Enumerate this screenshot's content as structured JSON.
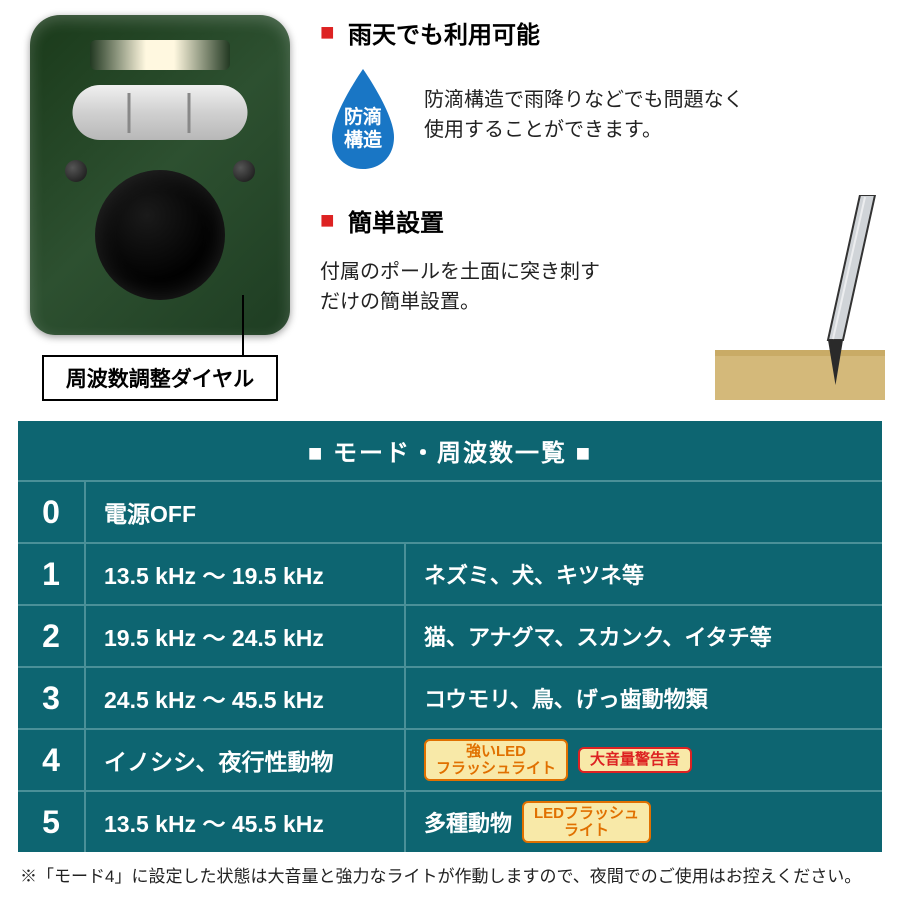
{
  "device": {
    "dial_label": "周波数調整ダイヤル"
  },
  "features": {
    "rain": {
      "heading": "雨天でも利用可能",
      "badge_line1": "防滴",
      "badge_line2": "構造",
      "badge_color": "#1976c5",
      "desc_line1": "防滴構造で雨降りなどでも問題なく",
      "desc_line2": "使用することができます。"
    },
    "install": {
      "heading": "簡単設置",
      "desc_line1": "付属のポールを土面に突き刺す",
      "desc_line2": "だけの簡単設置。"
    }
  },
  "table": {
    "title": "■ モード・周波数一覧 ■",
    "bg_color": "#0d6571",
    "divider_color": "#4a9098",
    "rows": [
      {
        "num": "0",
        "freq": "電源OFF",
        "target": "",
        "full": true
      },
      {
        "num": "1",
        "freq": "13.5 kHz ～ 19.5 kHz",
        "target": "ネズミ、犬、キツネ等"
      },
      {
        "num": "2",
        "freq": "19.5 kHz ～ 24.5 kHz",
        "target": "猫、アナグマ、スカンク、イタチ等"
      },
      {
        "num": "3",
        "freq": "24.5 kHz ～ 45.5 kHz",
        "target": "コウモリ、鳥、げっ歯動物類"
      },
      {
        "num": "4",
        "freq": "イノシシ、夜行性動物",
        "target": "",
        "badges": [
          {
            "text1": "強いLED",
            "text2": "フラッシュライト",
            "cls": "badge-orange"
          },
          {
            "text1": "大音量警告音",
            "text2": "",
            "cls": "badge-red"
          }
        ]
      },
      {
        "num": "5",
        "freq": "13.5 kHz ～ 45.5 kHz",
        "target": "多種動物",
        "badges": [
          {
            "text1": "LEDフラッシュ",
            "text2": "ライト",
            "cls": "badge-orange"
          }
        ]
      }
    ]
  },
  "footnote": "※「モード4」に設定した状態は大音量と強力なライトが作動しますので、夜間でのご使用はお控えください。",
  "colors": {
    "accent_red": "#d22",
    "badge_bg": "#f8e9a8"
  }
}
